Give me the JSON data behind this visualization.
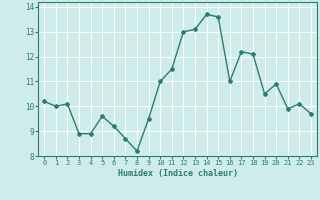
{
  "x": [
    0,
    1,
    2,
    3,
    4,
    5,
    6,
    7,
    8,
    9,
    10,
    11,
    12,
    13,
    14,
    15,
    16,
    17,
    18,
    19,
    20,
    21,
    22,
    23
  ],
  "y": [
    10.2,
    10.0,
    10.1,
    8.9,
    8.9,
    9.6,
    9.2,
    8.7,
    8.2,
    9.5,
    11.0,
    11.5,
    13.0,
    13.1,
    13.7,
    13.6,
    11.0,
    12.2,
    12.1,
    10.5,
    10.9,
    9.9,
    10.1,
    9.7
  ],
  "xlabel": "Humidex (Indice chaleur)",
  "xlim": [
    -0.5,
    23.5
  ],
  "ylim": [
    8,
    14.2
  ],
  "yticks": [
    8,
    9,
    10,
    11,
    12,
    13,
    14
  ],
  "xticks": [
    0,
    1,
    2,
    3,
    4,
    5,
    6,
    7,
    8,
    9,
    10,
    11,
    12,
    13,
    14,
    15,
    16,
    17,
    18,
    19,
    20,
    21,
    22,
    23
  ],
  "line_color": "#2d7d6e",
  "marker": "D",
  "marker_size": 2.0,
  "bg_color": "#ceecea",
  "grid_color": "#ffffff",
  "tick_color": "#2d7d6e",
  "label_color": "#2d7d6e",
  "line_width": 1.0
}
